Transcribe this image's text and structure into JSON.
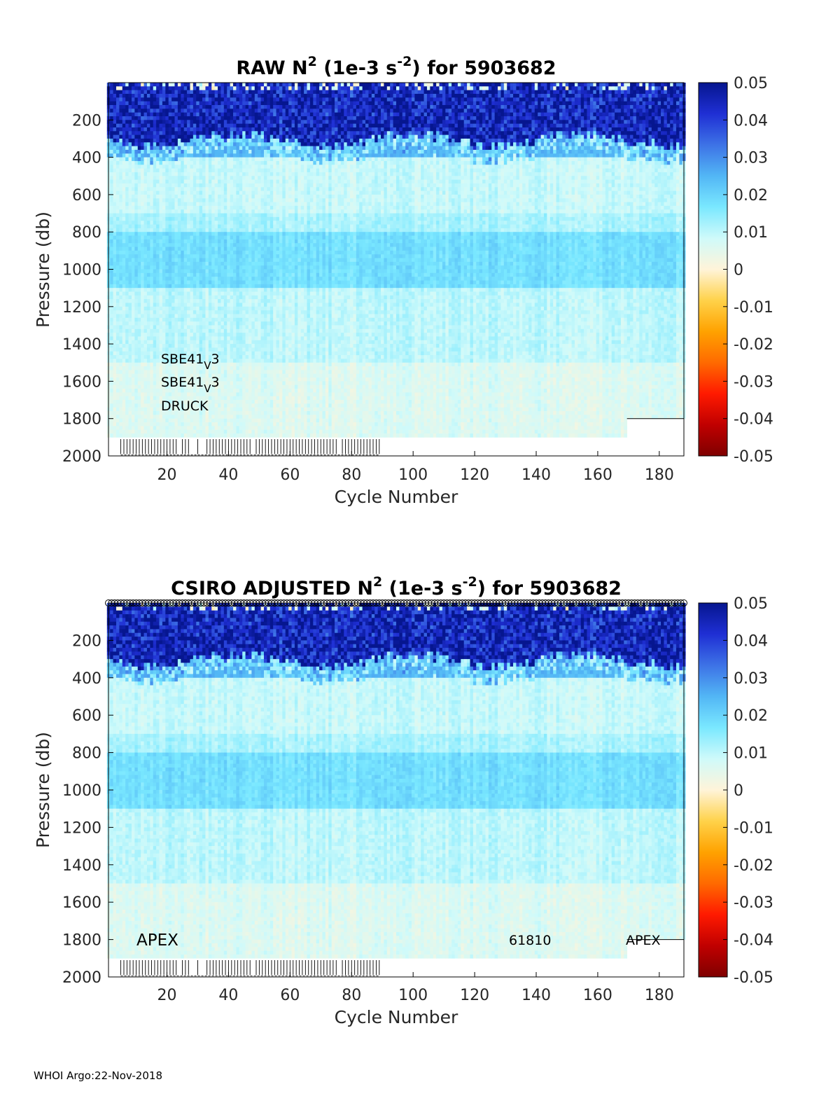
{
  "colors": {
    "colormap": [
      "#7f0000",
      "#c00000",
      "#ff1a00",
      "#ff6a00",
      "#ffa200",
      "#ffd24a",
      "#fff4d9",
      "#cffafa",
      "#7ae8ff",
      "#52b6f5",
      "#3d72e6",
      "#1f2fd4",
      "#06168f"
    ],
    "panel_frame": "#000000",
    "missing_marker": "#000000"
  },
  "footer": {
    "text": "WHOI Argo:22-Nov-2018"
  },
  "chart_data": [
    {
      "type": "heatmap",
      "title_parts": {
        "prefix": "RAW N",
        "sup1": "2",
        "mid": " (1e-3 s",
        "sup2": "-2",
        "suffix": ") for 5903682"
      },
      "xlabel": "Cycle Number",
      "ylabel": "Pressure (db)",
      "xlim": [
        1,
        188
      ],
      "ylim": [
        2000,
        0
      ],
      "x_ticks": [
        "20",
        "40",
        "60",
        "80",
        "100",
        "120",
        "140",
        "160",
        "180"
      ],
      "y_ticks": [
        "200",
        "400",
        "600",
        "800",
        "1000",
        "1200",
        "1400",
        "1600",
        "1800",
        "2000"
      ],
      "colorbar": {
        "clim": [
          -0.05,
          0.05
        ],
        "ticks": [
          "0.05",
          "0.04",
          "0.03",
          "0.02",
          "0.01",
          "0",
          "-0.01",
          "-0.02",
          "-0.03",
          "-0.04",
          "-0.05"
        ]
      },
      "annotations": [
        {
          "text": "SBE41",
          "sub": "V",
          "tail": "3"
        },
        {
          "text": "SBE41",
          "sub": "V",
          "tail": "3"
        },
        {
          "text": "DRUCK"
        }
      ],
      "profile_depth_max": {
        "cycles_1_169": 1900,
        "cycles_170_188": 1800
      },
      "short_profile_cycles": [
        5,
        6,
        7,
        8,
        9,
        10,
        11,
        12,
        13,
        14,
        15,
        16,
        17,
        18,
        19,
        20,
        21,
        22,
        23,
        25,
        26,
        27,
        30,
        33,
        34,
        35,
        36,
        37,
        38,
        39,
        40,
        41,
        42,
        43,
        44,
        45,
        46,
        47,
        49,
        50,
        51,
        52,
        53,
        54,
        55,
        56,
        57,
        58,
        59,
        60,
        61,
        62,
        63,
        64,
        65,
        66,
        67,
        68,
        69,
        70,
        71,
        72,
        73,
        74,
        75,
        77,
        78,
        79,
        80,
        81,
        82,
        83,
        84,
        85,
        86,
        87,
        88,
        89
      ],
      "bands_by_pressure": [
        {
          "p_min": 0,
          "p_max": 300,
          "n2": 0.045
        },
        {
          "p_min": 300,
          "p_max": 400,
          "n2": 0.025
        },
        {
          "p_min": 400,
          "p_max": 700,
          "n2": 0.009
        },
        {
          "p_min": 700,
          "p_max": 800,
          "n2": 0.012
        },
        {
          "p_min": 800,
          "p_max": 1100,
          "n2": 0.018
        },
        {
          "p_min": 1100,
          "p_max": 1500,
          "n2": 0.01
        },
        {
          "p_min": 1500,
          "p_max": 2000,
          "n2": 0.006
        }
      ]
    },
    {
      "type": "heatmap",
      "title_parts": {
        "prefix": "CSIRO  ADJUSTED N",
        "sup1": "2",
        "mid": " (1e-3 s",
        "sup2": "-2",
        "suffix": ") for 5903682"
      },
      "xlabel": "Cycle Number",
      "ylabel": "Pressure (db)",
      "xlim": [
        1,
        188
      ],
      "ylim": [
        2000,
        0
      ],
      "x_ticks": [
        "20",
        "40",
        "60",
        "80",
        "100",
        "120",
        "140",
        "160",
        "180"
      ],
      "y_ticks": [
        "200",
        "400",
        "600",
        "800",
        "1000",
        "1200",
        "1400",
        "1600",
        "1800",
        "2000"
      ],
      "colorbar": {
        "clim": [
          -0.05,
          0.05
        ],
        "ticks": [
          "0.05",
          "0.04",
          "0.03",
          "0.02",
          "0.01",
          "0",
          "-0.01",
          "-0.02",
          "-0.03",
          "-0.04",
          "-0.05"
        ]
      },
      "annotations": [
        {
          "text": "APEX"
        },
        {
          "text": "61810"
        },
        {
          "text": "APEX"
        }
      ],
      "qc_markers": "circles along top edge at every cycle",
      "profile_depth_max": {
        "cycles_1_169": 1900,
        "cycles_170_188": 1800
      },
      "short_profile_cycles": [
        5,
        6,
        7,
        8,
        9,
        10,
        11,
        12,
        13,
        14,
        15,
        16,
        17,
        18,
        19,
        20,
        21,
        22,
        23,
        25,
        26,
        27,
        30,
        33,
        34,
        35,
        36,
        37,
        38,
        39,
        40,
        41,
        42,
        43,
        44,
        45,
        46,
        47,
        49,
        50,
        51,
        52,
        53,
        54,
        55,
        56,
        57,
        58,
        59,
        60,
        61,
        62,
        63,
        64,
        65,
        66,
        67,
        68,
        69,
        70,
        71,
        72,
        73,
        74,
        75,
        77,
        78,
        79,
        80,
        81,
        82,
        83,
        84,
        85,
        86,
        87,
        88,
        89
      ],
      "bands_by_pressure": [
        {
          "p_min": 0,
          "p_max": 300,
          "n2": 0.045
        },
        {
          "p_min": 300,
          "p_max": 400,
          "n2": 0.025
        },
        {
          "p_min": 400,
          "p_max": 700,
          "n2": 0.009
        },
        {
          "p_min": 700,
          "p_max": 800,
          "n2": 0.012
        },
        {
          "p_min": 800,
          "p_max": 1100,
          "n2": 0.018
        },
        {
          "p_min": 1100,
          "p_max": 1500,
          "n2": 0.01
        },
        {
          "p_min": 1500,
          "p_max": 2000,
          "n2": 0.006
        }
      ]
    }
  ]
}
